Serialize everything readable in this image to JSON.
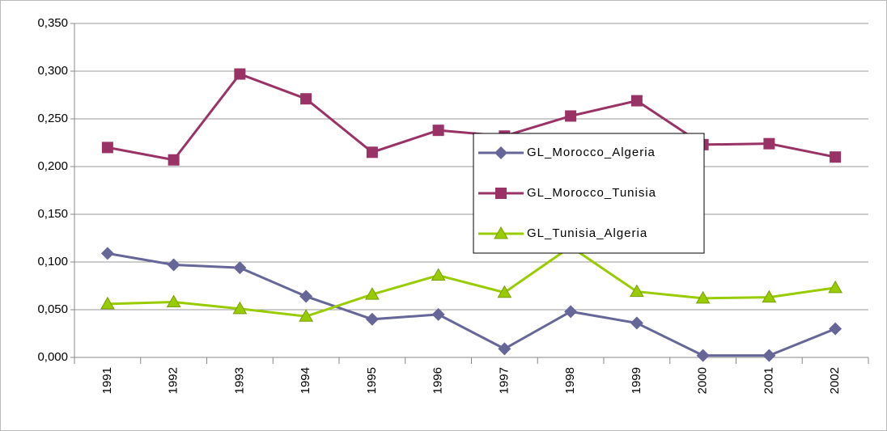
{
  "chart_data": {
    "type": "line",
    "categories": [
      "1991",
      "1992",
      "1993",
      "1994",
      "1995",
      "1996",
      "1997",
      "1998",
      "1999",
      "2000",
      "2001",
      "2002"
    ],
    "series": [
      {
        "name": "GL_Morocco_Algeria",
        "color": "#666699",
        "marker": "diamond",
        "values": [
          0.109,
          0.097,
          0.094,
          0.064,
          0.04,
          0.045,
          0.009,
          0.048,
          0.036,
          0.002,
          0.002,
          0.03
        ]
      },
      {
        "name": "GL_Morocco_Tunisia",
        "color": "#993366",
        "marker": "square",
        "values": [
          0.22,
          0.207,
          0.297,
          0.271,
          0.215,
          0.238,
          0.232,
          0.253,
          0.269,
          0.223,
          0.224,
          0.21
        ]
      },
      {
        "name": "GL_Tunisia_Algeria",
        "color": "#99cc00",
        "marker": "triangle",
        "values": [
          0.056,
          0.058,
          0.051,
          0.043,
          0.066,
          0.086,
          0.068,
          0.116,
          0.069,
          0.062,
          0.063,
          0.073
        ]
      }
    ],
    "ylim": [
      0,
      0.35
    ],
    "yticks": [
      {
        "value": 0,
        "label": "0,000"
      },
      {
        "value": 0.05,
        "label": "0,050"
      },
      {
        "value": 0.1,
        "label": "0,100"
      },
      {
        "value": 0.15,
        "label": "0,150"
      },
      {
        "value": 0.2,
        "label": "0,200"
      },
      {
        "value": 0.25,
        "label": "0,250"
      },
      {
        "value": 0.3,
        "label": "0,300"
      },
      {
        "value": 0.35,
        "label": "0,350"
      }
    ],
    "grid": true,
    "legend": "center"
  }
}
